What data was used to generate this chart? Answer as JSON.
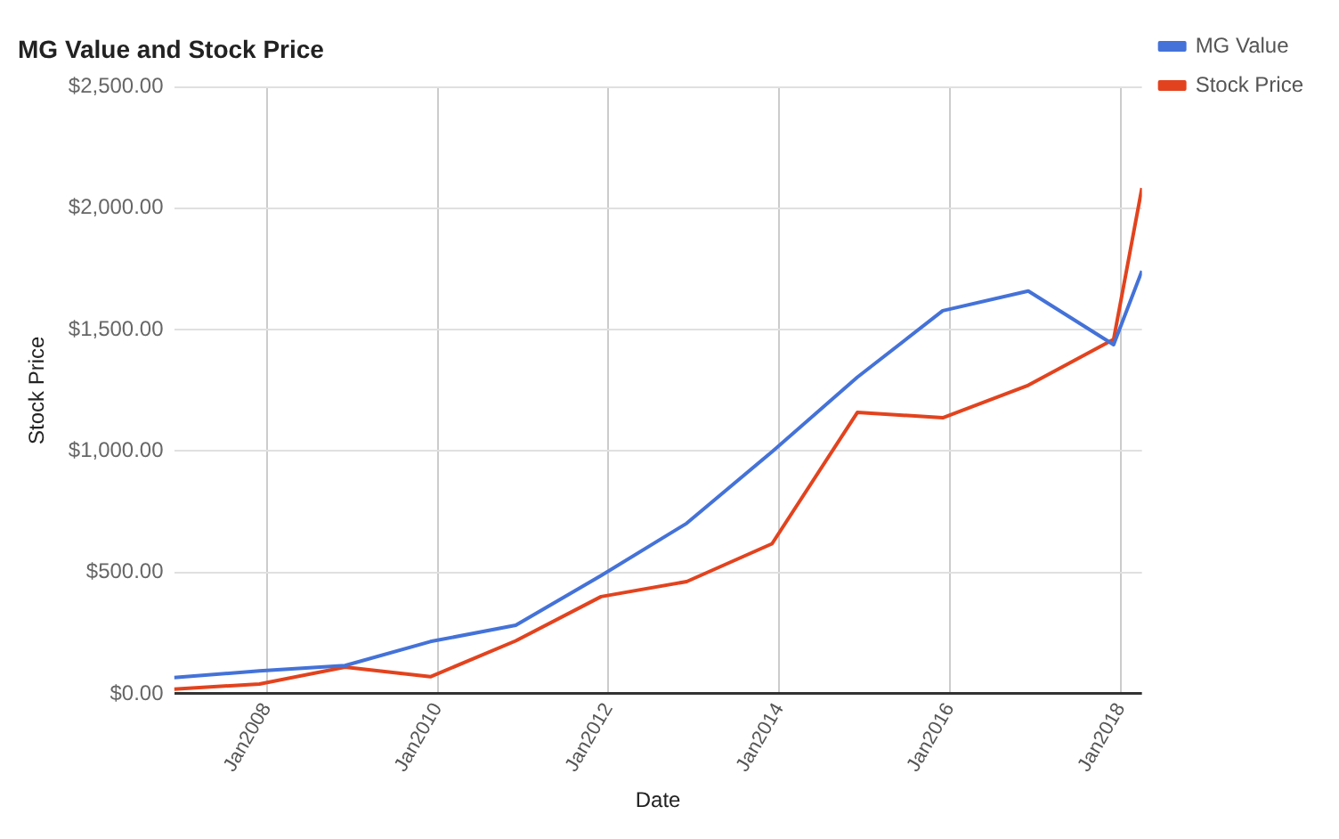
{
  "chart_data": {
    "type": "line",
    "title": "MG Value and Stock Price",
    "xlabel": "Date",
    "ylabel": "Stock Price",
    "x": [
      "2006-12",
      "2007-12",
      "2008-12",
      "2009-12",
      "2010-12",
      "2011-12",
      "2012-12",
      "2013-12",
      "2014-12",
      "2015-12",
      "2016-12",
      "2017-12",
      "2018-04"
    ],
    "series": [
      {
        "name": "MG Value",
        "color": "#4472d8",
        "values": [
          67,
          94,
          116,
          215,
          282,
          487,
          702,
          997,
          1304,
          1578,
          1659,
          1438,
          1742
        ]
      },
      {
        "name": "Stock Price",
        "color": "#e2431e",
        "values": [
          19,
          40,
          110,
          70,
          218,
          400,
          462,
          618,
          1159,
          1137,
          1271,
          1460,
          2083
        ]
      }
    ],
    "xlim": [
      "2006-12",
      "2018-04"
    ],
    "xticks": [
      {
        "value": "2008-01",
        "label": "Jan2008"
      },
      {
        "value": "2010-01",
        "label": "Jan2010"
      },
      {
        "value": "2012-01",
        "label": "Jan2012"
      },
      {
        "value": "2014-01",
        "label": "Jan2014"
      },
      {
        "value": "2016-01",
        "label": "Jan2016"
      },
      {
        "value": "2018-01",
        "label": "Jan2018"
      }
    ],
    "ylim": [
      0,
      2500
    ],
    "yticks": [
      {
        "value": 0,
        "label": "$0.00"
      },
      {
        "value": 500,
        "label": "$500.00"
      },
      {
        "value": 1000,
        "label": "$1,000.00"
      },
      {
        "value": 1500,
        "label": "$1,500.00"
      },
      {
        "value": 2000,
        "label": "$2,000.00"
      },
      {
        "value": 2500,
        "label": "$2,500.00"
      }
    ],
    "grid": true,
    "legend": "top right",
    "marker": "none",
    "line_style": "solid"
  }
}
